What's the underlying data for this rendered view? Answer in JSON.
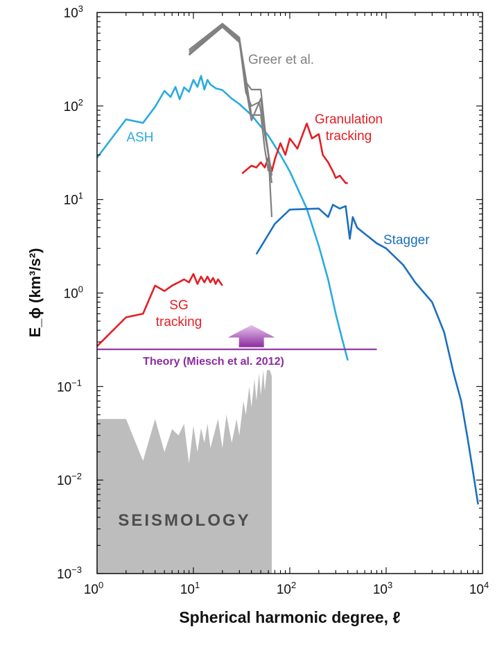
{
  "chart_data": {
    "type": "line",
    "xlabel": "Spherical harmonic degree, ℓ",
    "ylabel": "E_ϕ (km³/s²)",
    "x_scale": "log",
    "y_scale": "log",
    "xlim": [
      1,
      10000
    ],
    "ylim": [
      0.001,
      1000
    ],
    "grid": false,
    "x_ticks": [
      {
        "base": "10",
        "exp": "0"
      },
      {
        "base": "10",
        "exp": "1"
      },
      {
        "base": "10",
        "exp": "2"
      },
      {
        "base": "10",
        "exp": "3"
      },
      {
        "base": "10",
        "exp": "4"
      }
    ],
    "y_ticks": [
      {
        "base": "10",
        "exp": "−3"
      },
      {
        "base": "10",
        "exp": "−2"
      },
      {
        "base": "10",
        "exp": "−1"
      },
      {
        "base": "10",
        "exp": "0"
      },
      {
        "base": "10",
        "exp": "1"
      },
      {
        "base": "10",
        "exp": "2"
      },
      {
        "base": "10",
        "exp": "3"
      }
    ],
    "series": [
      {
        "name": "ASH",
        "color": "#29aae2",
        "points": [
          [
            1,
            28
          ],
          [
            2,
            72
          ],
          [
            3,
            66
          ],
          [
            4,
            98
          ],
          [
            5,
            145
          ],
          [
            5.8,
            125
          ],
          [
            6.5,
            160
          ],
          [
            7.2,
            118
          ],
          [
            8,
            158
          ],
          [
            9,
            142
          ],
          [
            10,
            190
          ],
          [
            11,
            160
          ],
          [
            12,
            210
          ],
          [
            13,
            150
          ],
          [
            14,
            190
          ],
          [
            15,
            170
          ],
          [
            17,
            155
          ],
          [
            20,
            148
          ],
          [
            25,
            120
          ],
          [
            30,
            105
          ],
          [
            40,
            80
          ],
          [
            60,
            48
          ],
          [
            80,
            30
          ],
          [
            100,
            20
          ],
          [
            150,
            8
          ],
          [
            200,
            3.2
          ],
          [
            250,
            1.4
          ],
          [
            300,
            0.6
          ],
          [
            350,
            0.32
          ],
          [
            400,
            0.19
          ]
        ]
      },
      {
        "name": "Stagger",
        "color": "#1b6fbf",
        "points": [
          [
            45,
            2.6
          ],
          [
            70,
            5.5
          ],
          [
            100,
            7.8
          ],
          [
            200,
            8
          ],
          [
            250,
            6.5
          ],
          [
            280,
            8.8
          ],
          [
            330,
            8
          ],
          [
            380,
            8.5
          ],
          [
            420,
            3.8
          ],
          [
            450,
            6.5
          ],
          [
            500,
            5
          ],
          [
            600,
            4.3
          ],
          [
            800,
            3.4
          ],
          [
            1000,
            3
          ],
          [
            1500,
            2
          ],
          [
            2000,
            1.3
          ],
          [
            3000,
            0.8
          ],
          [
            4000,
            0.38
          ],
          [
            5000,
            0.14
          ],
          [
            6000,
            0.07
          ],
          [
            7000,
            0.028
          ],
          [
            8000,
            0.012
          ],
          [
            9000,
            0.0055
          ]
        ]
      },
      {
        "name": "Granulation tracking",
        "color": "#e31e24",
        "points": [
          [
            32,
            19
          ],
          [
            40,
            23
          ],
          [
            45,
            22
          ],
          [
            50,
            25
          ],
          [
            55,
            22
          ],
          [
            60,
            28
          ],
          [
            65,
            20
          ],
          [
            70,
            27
          ],
          [
            80,
            40
          ],
          [
            90,
            30
          ],
          [
            100,
            45
          ],
          [
            120,
            35
          ],
          [
            150,
            65
          ],
          [
            170,
            45
          ],
          [
            200,
            50
          ],
          [
            220,
            30
          ],
          [
            250,
            25
          ],
          [
            280,
            20
          ],
          [
            300,
            17
          ],
          [
            330,
            18
          ],
          [
            380,
            15
          ],
          [
            400,
            15
          ]
        ]
      },
      {
        "name": "SG tracking",
        "color": "#e31e24",
        "points": [
          [
            1,
            0.27
          ],
          [
            2,
            0.55
          ],
          [
            3,
            0.6
          ],
          [
            4,
            1.2
          ],
          [
            5,
            1.05
          ],
          [
            6,
            1.2
          ],
          [
            7,
            1.3
          ],
          [
            8,
            1.4
          ],
          [
            9,
            1.3
          ],
          [
            10,
            1.6
          ],
          [
            11,
            1.25
          ],
          [
            12,
            1.5
          ],
          [
            13,
            1.3
          ],
          [
            14,
            1.5
          ],
          [
            15,
            1.3
          ],
          [
            16,
            1.45
          ],
          [
            17,
            1.25
          ],
          [
            18,
            1.4
          ],
          [
            20,
            1.2
          ]
        ]
      },
      {
        "name": "Greer et al.",
        "color": "#808080",
        "lines": [
          [
            [
              9,
              380
            ],
            [
              20,
              730
            ],
            [
              30,
              520
            ],
            [
              35,
              200
            ],
            [
              40,
              80
            ],
            [
              50,
              80
            ],
            [
              55,
              35
            ],
            [
              60,
              20
            ]
          ],
          [
            [
              9,
              350
            ],
            [
              20,
              700
            ],
            [
              30,
              480
            ],
            [
              35,
              160
            ],
            [
              40,
              70
            ],
            [
              50,
              120
            ],
            [
              55,
              50
            ],
            [
              60,
              30
            ],
            [
              65,
              6.5
            ]
          ],
          [
            [
              9,
              400
            ],
            [
              20,
              760
            ],
            [
              30,
              540
            ],
            [
              35,
              180
            ],
            [
              40,
              150
            ],
            [
              50,
              150
            ],
            [
              55,
              60
            ],
            [
              65,
              15
            ]
          ],
          [
            [
              9,
              360
            ],
            [
              20,
              720
            ],
            [
              30,
              500
            ],
            [
              35,
              140
            ],
            [
              40,
              100
            ],
            [
              48,
              110
            ],
            [
              58,
              40
            ],
            [
              65,
              18
            ]
          ]
        ]
      },
      {
        "name": "Theory (Miesch et al. 2012)",
        "color": "#8b2c9e",
        "points": [
          [
            1,
            0.25
          ],
          [
            800,
            0.25
          ]
        ],
        "arrow_at": 40
      }
    ],
    "seismology": {
      "label": "SEISMOLOGY",
      "color": "#bdbdbd",
      "points": [
        [
          1,
          0.045
        ],
        [
          2,
          0.045
        ],
        [
          3,
          0.016
        ],
        [
          4,
          0.045
        ],
        [
          5,
          0.02
        ],
        [
          6,
          0.035
        ],
        [
          7,
          0.03
        ],
        [
          8,
          0.04
        ],
        [
          9,
          0.015
        ],
        [
          10,
          0.038
        ],
        [
          11,
          0.02
        ],
        [
          12,
          0.036
        ],
        [
          13,
          0.025
        ],
        [
          14,
          0.04
        ],
        [
          15,
          0.022
        ],
        [
          18,
          0.045
        ],
        [
          20,
          0.022
        ],
        [
          22,
          0.05
        ],
        [
          25,
          0.025
        ],
        [
          28,
          0.045
        ],
        [
          30,
          0.03
        ],
        [
          33,
          0.07
        ],
        [
          35,
          0.05
        ],
        [
          38,
          0.1
        ],
        [
          40,
          0.06
        ],
        [
          43,
          0.12
        ],
        [
          45,
          0.07
        ],
        [
          48,
          0.14
        ],
        [
          50,
          0.08
        ],
        [
          53,
          0.15
        ],
        [
          55,
          0.09
        ],
        [
          58,
          0.15
        ],
        [
          62,
          0.15
        ],
        [
          65,
          0.13
        ]
      ]
    }
  }
}
